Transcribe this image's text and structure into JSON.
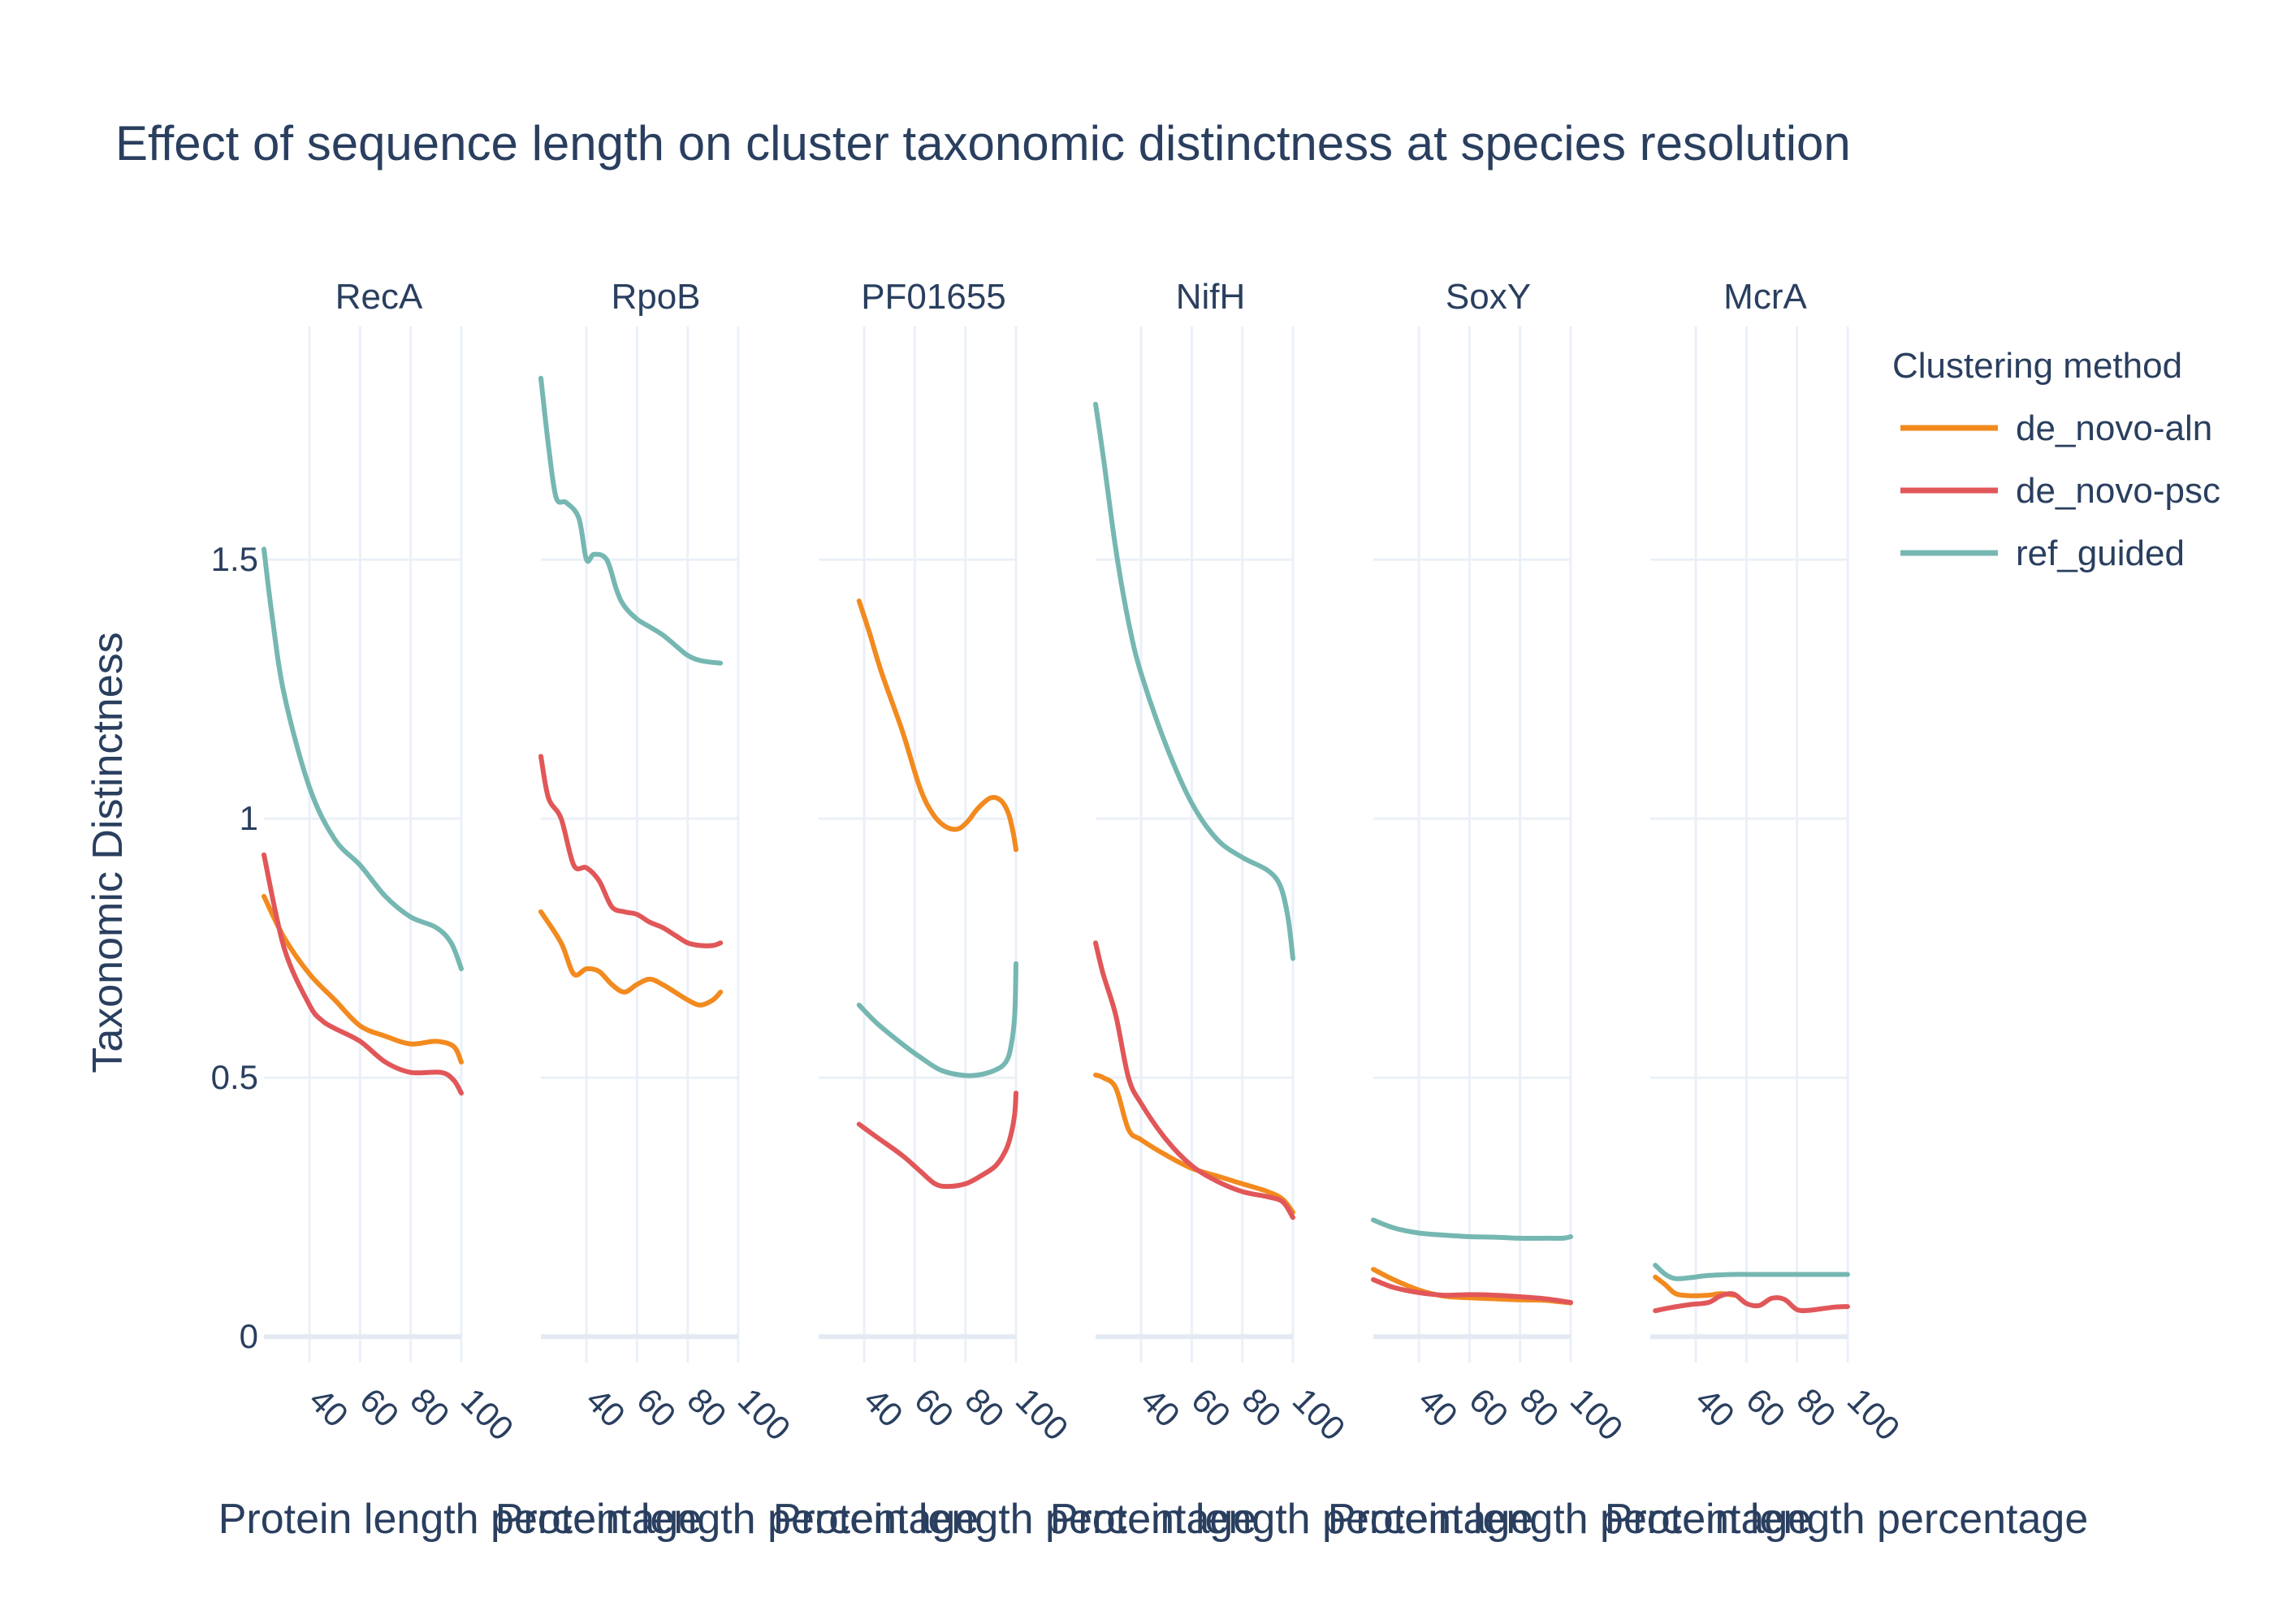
{
  "chart_data": {
    "type": "line",
    "title": "Effect of sequence length on cluster taxonomic distinctness at species resolution",
    "ylabel": "Taxonomic Distinctness",
    "xlabel": "Protein length percentage",
    "ylim": [
      -0.05,
      1.95
    ],
    "yticks": [
      0,
      0.5,
      1,
      1.5
    ],
    "ytick_labels": [
      "0",
      "0.5",
      "1",
      "1.5"
    ],
    "xlim": [
      22,
      100
    ],
    "xticks": [
      40,
      60,
      80,
      100
    ],
    "xtick_labels": [
      "40",
      "60",
      "80",
      "100"
    ],
    "grid": true,
    "legend": {
      "title": "Clustering method",
      "placement": "right"
    },
    "series_styles": [
      {
        "name": "de_novo-aln",
        "color": "#f28a1f"
      },
      {
        "name": "de_novo-psc",
        "color": "#e15759"
      },
      {
        "name": "ref_guided",
        "color": "#76b7b2"
      }
    ],
    "panels": [
      {
        "title": "RecA",
        "series": [
          {
            "name": "de_novo-aln",
            "x": [
              22,
              30,
              40,
              50,
              60,
              70,
              80,
              90,
              97,
              100
            ],
            "y": [
              0.85,
              0.77,
              0.7,
              0.65,
              0.6,
              0.58,
              0.565,
              0.57,
              0.56,
              0.53
            ]
          },
          {
            "name": "de_novo-psc",
            "x": [
              22,
              30,
              40,
              45,
              50,
              60,
              70,
              80,
              92,
              97,
              100
            ],
            "y": [
              0.93,
              0.75,
              0.64,
              0.61,
              0.595,
              0.57,
              0.53,
              0.51,
              0.51,
              0.495,
              0.47
            ]
          },
          {
            "name": "ref_guided",
            "x": [
              22,
              25,
              30,
              40,
              50,
              60,
              70,
              80,
              90,
              96,
              100
            ],
            "y": [
              1.52,
              1.4,
              1.24,
              1.06,
              0.96,
              0.91,
              0.85,
              0.81,
              0.79,
              0.76,
              0.71
            ]
          }
        ]
      },
      {
        "title": "RpoB",
        "series": [
          {
            "name": "de_novo-aln",
            "x": [
              22,
              30,
              35,
              40,
              45,
              50,
              55,
              60,
              65,
              70,
              75,
              80,
              85,
              90,
              93
            ],
            "y": [
              0.82,
              0.76,
              0.7,
              0.71,
              0.705,
              0.68,
              0.665,
              0.68,
              0.69,
              0.68,
              0.665,
              0.65,
              0.64,
              0.65,
              0.665
            ]
          },
          {
            "name": "de_novo-psc",
            "x": [
              22,
              25,
              30,
              35,
              40,
              45,
              50,
              55,
              60,
              65,
              70,
              75,
              80,
              85,
              90,
              93
            ],
            "y": [
              1.12,
              1.04,
              1.0,
              0.91,
              0.905,
              0.88,
              0.83,
              0.82,
              0.815,
              0.8,
              0.79,
              0.775,
              0.76,
              0.755,
              0.755,
              0.76
            ]
          },
          {
            "name": "ref_guided",
            "x": [
              22,
              25,
              28,
              32,
              37,
              40,
              43,
              48,
              52,
              55,
              60,
              65,
              70,
              75,
              80,
              85,
              93
            ],
            "y": [
              1.85,
              1.72,
              1.62,
              1.61,
              1.58,
              1.5,
              1.51,
              1.5,
              1.44,
              1.41,
              1.385,
              1.37,
              1.355,
              1.335,
              1.315,
              1.305,
              1.3
            ]
          }
        ]
      },
      {
        "title": "PF01655",
        "series": [
          {
            "name": "de_novo-aln",
            "x": [
              38,
              42,
              47,
              55,
              62,
              67,
              72,
              77,
              81,
              85,
              90,
              94,
              97,
              99,
              100
            ],
            "y": [
              1.42,
              1.36,
              1.28,
              1.17,
              1.06,
              1.01,
              0.985,
              0.98,
              0.995,
              1.02,
              1.04,
              1.035,
              1.01,
              0.97,
              0.94
            ]
          },
          {
            "name": "de_novo-psc",
            "x": [
              38,
              45,
              55,
              62,
              68,
              73,
              80,
              86,
              92,
              96,
              98,
              99.5,
              100
            ],
            "y": [
              0.41,
              0.385,
              0.35,
              0.32,
              0.295,
              0.29,
              0.295,
              0.31,
              0.33,
              0.36,
              0.39,
              0.43,
              0.47
            ]
          },
          {
            "name": "ref_guided",
            "x": [
              38,
              45,
              55,
              62,
              70,
              78,
              85,
              92,
              96,
              98,
              99.5,
              100
            ],
            "y": [
              0.64,
              0.605,
              0.565,
              0.54,
              0.515,
              0.505,
              0.505,
              0.515,
              0.53,
              0.56,
              0.62,
              0.72
            ]
          }
        ]
      },
      {
        "title": "NifH",
        "series": [
          {
            "name": "de_novo-aln",
            "x": [
              22,
              25,
              30,
              35,
              40,
              50,
              60,
              70,
              80,
              90,
              96,
              100
            ],
            "y": [
              0.505,
              0.5,
              0.48,
              0.4,
              0.38,
              0.35,
              0.325,
              0.31,
              0.295,
              0.28,
              0.265,
              0.24
            ]
          },
          {
            "name": "de_novo-psc",
            "x": [
              22,
              25,
              30,
              35,
              40,
              50,
              60,
              70,
              80,
              90,
              96,
              100
            ],
            "y": [
              0.76,
              0.7,
              0.62,
              0.5,
              0.45,
              0.38,
              0.33,
              0.3,
              0.28,
              0.27,
              0.26,
              0.23
            ]
          },
          {
            "name": "ref_guided",
            "x": [
              22,
              25,
              30,
              35,
              40,
              50,
              60,
              70,
              80,
              90,
              95,
              98,
              100
            ],
            "y": [
              1.8,
              1.7,
              1.52,
              1.38,
              1.28,
              1.14,
              1.03,
              0.96,
              0.925,
              0.9,
              0.87,
              0.81,
              0.73
            ]
          }
        ]
      },
      {
        "title": "SoxY",
        "series": [
          {
            "name": "de_novo-aln",
            "x": [
              22,
              30,
              40,
              50,
              60,
              70,
              80,
              90,
              100
            ],
            "y": [
              0.13,
              0.11,
              0.09,
              0.078,
              0.075,
              0.073,
              0.071,
              0.07,
              0.065
            ]
          },
          {
            "name": "de_novo-psc",
            "x": [
              22,
              30,
              40,
              50,
              60,
              70,
              80,
              90,
              100
            ],
            "y": [
              0.11,
              0.095,
              0.085,
              0.08,
              0.081,
              0.08,
              0.077,
              0.073,
              0.066
            ]
          },
          {
            "name": "ref_guided",
            "x": [
              22,
              30,
              40,
              50,
              60,
              70,
              80,
              90,
              97,
              100
            ],
            "y": [
              0.225,
              0.21,
              0.2,
              0.196,
              0.193,
              0.192,
              0.19,
              0.19,
              0.19,
              0.193
            ]
          }
        ]
      },
      {
        "title": "McrA",
        "series": [
          {
            "name": "de_novo-aln",
            "x": [
              24,
              28,
              32,
              38,
              45,
              50,
              55
            ],
            "y": [
              0.115,
              0.1,
              0.083,
              0.079,
              0.08,
              0.083,
              0.08
            ]
          },
          {
            "name": "de_novo-psc",
            "x": [
              24,
              30,
              38,
              45,
              50,
              55,
              60,
              65,
              70,
              75,
              80,
              85,
              90,
              95,
              100
            ],
            "y": [
              0.05,
              0.056,
              0.062,
              0.066,
              0.079,
              0.082,
              0.064,
              0.06,
              0.074,
              0.072,
              0.052,
              0.051,
              0.054,
              0.057,
              0.058
            ]
          },
          {
            "name": "ref_guided",
            "x": [
              24,
              28,
              32,
              38,
              45,
              55,
              65,
              80,
              100
            ],
            "y": [
              0.138,
              0.12,
              0.112,
              0.114,
              0.118,
              0.12,
              0.12,
              0.12,
              0.12
            ]
          }
        ]
      }
    ]
  }
}
